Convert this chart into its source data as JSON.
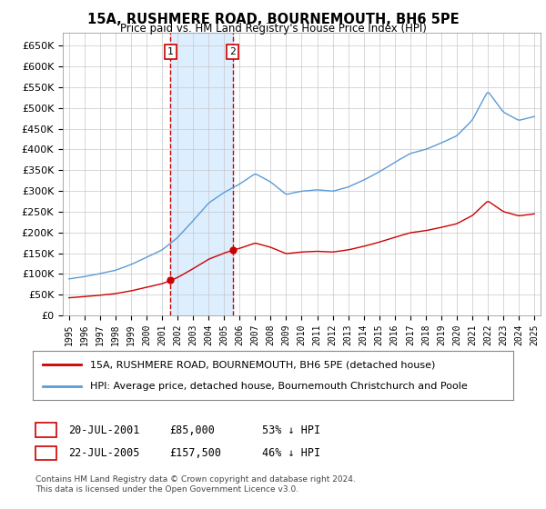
{
  "title": "15A, RUSHMERE ROAD, BOURNEMOUTH, BH6 5PE",
  "subtitle": "Price paid vs. HM Land Registry's House Price Index (HPI)",
  "legend_line1": "15A, RUSHMERE ROAD, BOURNEMOUTH, BH6 5PE (detached house)",
  "legend_line2": "HPI: Average price, detached house, Bournemouth Christchurch and Poole",
  "footer": "Contains HM Land Registry data © Crown copyright and database right 2024.\nThis data is licensed under the Open Government Licence v3.0.",
  "transaction1_label": "1",
  "transaction1_date": "20-JUL-2001",
  "transaction1_price": "£85,000",
  "transaction1_hpi": "53% ↓ HPI",
  "transaction1_year": 2001.55,
  "transaction1_value": 85000,
  "transaction2_label": "2",
  "transaction2_date": "22-JUL-2005",
  "transaction2_price": "£157,500",
  "transaction2_hpi": "46% ↓ HPI",
  "transaction2_year": 2005.55,
  "transaction2_value": 157500,
  "hpi_color": "#5b9bd5",
  "price_color": "#cc0000",
  "vline_color": "#cc0000",
  "shade_color": "#ddeeff",
  "background_color": "#ffffff",
  "grid_color": "#c8c8c8",
  "ylim_min": 0,
  "ylim_max": 680000
}
